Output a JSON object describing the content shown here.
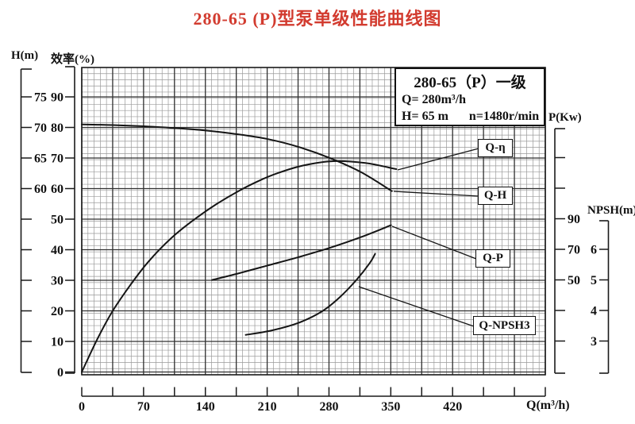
{
  "title": "280-65 (P)型泵单级性能曲线图",
  "info_box": {
    "model": "280-65（P）一级",
    "q_line": "Q= 280m³/h",
    "h_line": "H= 65 m",
    "n_line": "n=1480r/min"
  },
  "axis_labels": {
    "head": "H(m)",
    "efficiency": "效率(%)",
    "power": "P(Kw)",
    "npsh": "NPSH(m)",
    "flow": "Q(m³/h)"
  },
  "axis_ticks": {
    "head": [
      "75",
      "70",
      "65",
      "60",
      "",
      "",
      "",
      "",
      ""
    ],
    "efficiency": [
      "90",
      "80",
      "70",
      "60",
      "50",
      "40",
      "30",
      "20",
      "10",
      "0"
    ],
    "power": [
      "",
      "",
      "90",
      "70",
      "50",
      "",
      ""
    ],
    "npsh": [
      "6",
      "5",
      "4",
      "3"
    ],
    "flow": [
      "0",
      "",
      "70",
      "",
      "140",
      "",
      "210",
      "",
      "280",
      "",
      "350",
      "",
      "420",
      "",
      "",
      ""
    ]
  },
  "curve_labels": [
    {
      "label": "Q-η"
    },
    {
      "label": "Q-H"
    },
    {
      "label": "Q-P"
    },
    {
      "label": "Q-NPSH3"
    }
  ],
  "colors": {
    "title": "#d23b2f",
    "curve": "#151515",
    "grid_minor": "#9a9a9a",
    "grid_major": "#303030",
    "axis": "#1a1a1a"
  },
  "chart_data": {
    "type": "line",
    "title": "280-65 (P)型泵单级性能曲线图",
    "xlabel": "Q(m³/h)",
    "x_range": [
      0,
      523
    ],
    "x_major_step": 70,
    "grid": true,
    "rated_point": {
      "Q": 280,
      "H": 65,
      "n": "1480r/min"
    },
    "axes": {
      "H(m)": {
        "side": "left",
        "labeled_ticks": [
          75,
          70,
          65,
          60
        ],
        "tick_step": 5
      },
      "效率(%)": {
        "side": "left",
        "labeled_ticks": [
          90,
          80,
          70,
          60,
          50,
          40,
          30,
          20,
          10,
          0
        ],
        "tick_step": 10
      },
      "P(Kw)": {
        "side": "right",
        "labeled_ticks": [
          90,
          70,
          50
        ],
        "tick_step": 20
      },
      "NPSH(m)": {
        "side": "right",
        "labeled_ticks": [
          6,
          5,
          4,
          3
        ],
        "tick_step": 1
      }
    },
    "series": [
      {
        "name": "Q-H",
        "axis": "H",
        "x": [
          0,
          35,
          70,
          105,
          140,
          175,
          210,
          245,
          280,
          315,
          350
        ],
        "y": [
          70.5,
          70.4,
          70.2,
          69.9,
          69.5,
          68.9,
          68.1,
          66.8,
          65,
          62.7,
          59.6
        ]
      },
      {
        "name": "Q-η",
        "axis": "EFF",
        "x": [
          0,
          18,
          35,
          55,
          75,
          100,
          123,
          150,
          176,
          200,
          221,
          250,
          284,
          320,
          355
        ],
        "y": [
          0,
          11,
          20,
          28.5,
          36,
          43.5,
          49,
          54.5,
          59,
          62.5,
          65,
          67.5,
          68.9,
          68.3,
          66.3
        ]
      },
      {
        "name": "Q-P",
        "axis": "P",
        "x": [
          147,
          175,
          210,
          245,
          280,
          315,
          349
        ],
        "y": [
          50,
          54,
          59.5,
          65,
          71,
          78,
          85.8
        ]
      },
      {
        "name": "Q-NPSH3",
        "axis": "NPSH",
        "x": [
          185,
          215,
          245,
          270,
          290,
          310,
          325,
          331
        ],
        "y": [
          3.2,
          3.35,
          3.6,
          3.95,
          4.4,
          5.0,
          5.55,
          5.85
        ]
      }
    ]
  }
}
